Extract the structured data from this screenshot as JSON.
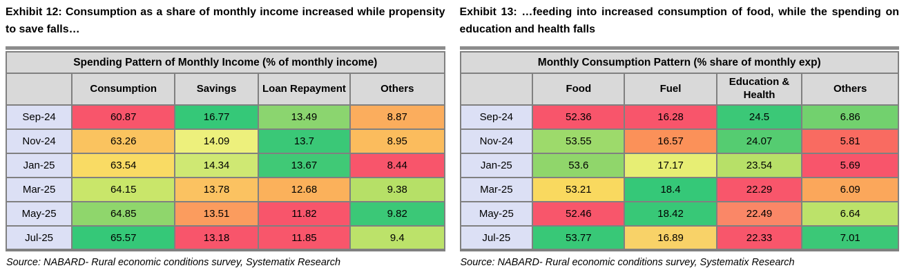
{
  "theme": {
    "border_gray": "#808080",
    "header_bg": "#D9D9D9",
    "row_label_bg": "#DCE0F5",
    "top_bar_gray": "#8C8C8C",
    "heatmap_red": "#F8556B",
    "heatmap_green": "#35C878"
  },
  "exhibit12": {
    "title": "Exhibit 12: Consumption as a share of monthly income increased while propensity to save falls…",
    "table_title": "Spending Pattern of Monthly Income (% of monthly income)",
    "columns": [
      "",
      "Consumption",
      "Savings",
      "Loan Repayment",
      "Others"
    ],
    "rows": [
      {
        "label": "Sep-24",
        "cells": [
          {
            "value": "60.87",
            "color": "#F8556B"
          },
          {
            "value": "16.77",
            "color": "#35C878"
          },
          {
            "value": "13.49",
            "color": "#8BD56F"
          },
          {
            "value": "8.87",
            "color": "#FBAD5D"
          }
        ]
      },
      {
        "label": "Nov-24",
        "cells": [
          {
            "value": "63.26",
            "color": "#FAC35F"
          },
          {
            "value": "14.09",
            "color": "#EDF07C"
          },
          {
            "value": "13.7",
            "color": "#3AC877"
          },
          {
            "value": "8.95",
            "color": "#FBBC5D"
          }
        ]
      },
      {
        "label": "Jan-25",
        "cells": [
          {
            "value": "63.54",
            "color": "#F9DB64"
          },
          {
            "value": "14.34",
            "color": "#CFE873"
          },
          {
            "value": "13.67",
            "color": "#40C976"
          },
          {
            "value": "8.44",
            "color": "#F8556B"
          }
        ]
      },
      {
        "label": "Mar-25",
        "cells": [
          {
            "value": "64.15",
            "color": "#C9E66A"
          },
          {
            "value": "13.78",
            "color": "#FBC261"
          },
          {
            "value": "12.68",
            "color": "#FBB15B"
          },
          {
            "value": "9.38",
            "color": "#B6E067"
          }
        ]
      },
      {
        "label": "May-25",
        "cells": [
          {
            "value": "64.85",
            "color": "#8FD66C"
          },
          {
            "value": "13.51",
            "color": "#FB9C5E"
          },
          {
            "value": "11.82",
            "color": "#F8556B"
          },
          {
            "value": "9.82",
            "color": "#3BC877"
          }
        ]
      },
      {
        "label": "Jul-25",
        "cells": [
          {
            "value": "65.57",
            "color": "#35C878"
          },
          {
            "value": "13.18",
            "color": "#F8556B"
          },
          {
            "value": "11.85",
            "color": "#F8566B"
          },
          {
            "value": "9.4",
            "color": "#BCE26A"
          }
        ]
      }
    ],
    "source": "Source: NABARD- Rural economic conditions survey, Systematix Research"
  },
  "exhibit13": {
    "title": "Exhibit 13: …feeding into increased consumption of food, while the spending on education and health falls",
    "table_title": "Monthly Consumption Pattern (% share of monthly exp)",
    "columns": [
      "",
      "Food",
      "Fuel",
      "Education & Health",
      "Others"
    ],
    "rows": [
      {
        "label": "Sep-24",
        "cells": [
          {
            "value": "52.36",
            "color": "#F8556B"
          },
          {
            "value": "16.28",
            "color": "#F8556B"
          },
          {
            "value": "24.5",
            "color": "#3BC877"
          },
          {
            "value": "6.86",
            "color": "#72D16E"
          }
        ]
      },
      {
        "label": "Nov-24",
        "cells": [
          {
            "value": "53.55",
            "color": "#9DDA6B"
          },
          {
            "value": "16.57",
            "color": "#FB9159"
          },
          {
            "value": "24.07",
            "color": "#55CC71"
          },
          {
            "value": "5.81",
            "color": "#F96B61"
          }
        ]
      },
      {
        "label": "Jan-25",
        "cells": [
          {
            "value": "53.6",
            "color": "#90D66B"
          },
          {
            "value": "17.17",
            "color": "#E7EE74"
          },
          {
            "value": "23.54",
            "color": "#B7E068"
          },
          {
            "value": "5.69",
            "color": "#F8556B"
          }
        ]
      },
      {
        "label": "Mar-25",
        "cells": [
          {
            "value": "53.21",
            "color": "#F9D95F"
          },
          {
            "value": "18.4",
            "color": "#35C878"
          },
          {
            "value": "22.29",
            "color": "#F8566B"
          },
          {
            "value": "6.09",
            "color": "#FBA75B"
          }
        ]
      },
      {
        "label": "May-25",
        "cells": [
          {
            "value": "52.46",
            "color": "#F8566B"
          },
          {
            "value": "18.42",
            "color": "#38C877"
          },
          {
            "value": "22.49",
            "color": "#FA8767"
          },
          {
            "value": "6.64",
            "color": "#BCE26A"
          }
        ]
      },
      {
        "label": "Jul-25",
        "cells": [
          {
            "value": "53.77",
            "color": "#38C877"
          },
          {
            "value": "16.89",
            "color": "#F8D268"
          },
          {
            "value": "22.33",
            "color": "#F8566B"
          },
          {
            "value": "7.01",
            "color": "#3BC877"
          }
        ]
      }
    ],
    "source": "Source: NABARD- Rural economic conditions survey, Systematix Research"
  }
}
